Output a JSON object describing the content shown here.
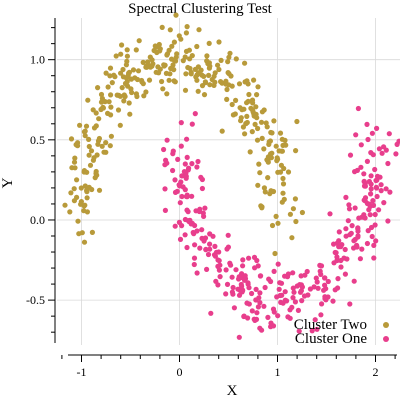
{
  "chart_data": {
    "type": "scatter",
    "title": "Spectral Clustering Test",
    "xlabel": "X",
    "ylabel": "Y",
    "xlim": [
      -1.25,
      2.25
    ],
    "ylim": [
      -0.78,
      1.26
    ],
    "xticks": [
      -1,
      0,
      1,
      2
    ],
    "xtick_labels": [
      "-1",
      "0",
      "1",
      "2"
    ],
    "yticks": [
      -0.5,
      0.0,
      0.5,
      1.0
    ],
    "ytick_labels": [
      "-0.5",
      "0.0",
      "0.5",
      "1.0"
    ],
    "grid": true,
    "legend": "bottom-right",
    "series": [
      {
        "name": "Cluster Two",
        "color": "#b89a3a",
        "shape": "upper-moon",
        "center": [
          0.0,
          0.0
        ],
        "radius": 1.0,
        "angle_range_deg": [
          0,
          180
        ],
        "noise": 0.1,
        "count": 360
      },
      {
        "name": "Cluster One",
        "color": "#e83e8c",
        "shape": "lower-moon",
        "center": [
          1.0,
          0.5
        ],
        "radius": 1.0,
        "angle_range_deg": [
          180,
          360
        ],
        "noise": 0.1,
        "count": 360
      }
    ]
  }
}
